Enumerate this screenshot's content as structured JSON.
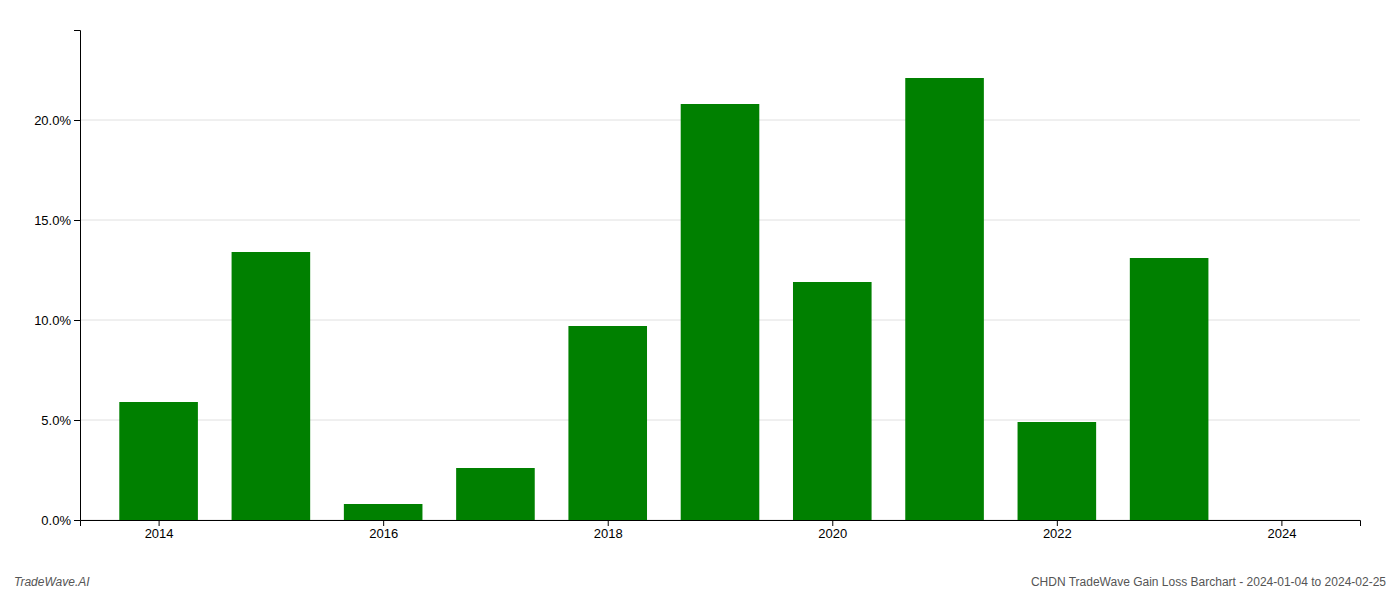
{
  "chart_data": {
    "type": "bar",
    "title": "CHDN TradeWave Gain Loss Barchart - 2024-01-04 to 2024-02-25",
    "annotations": [
      "TradeWave.AI"
    ],
    "x": [
      2014,
      2015,
      2016,
      2017,
      2018,
      2019,
      2020,
      2021,
      2022,
      2023,
      2024
    ],
    "values": [
      0.059,
      0.134,
      0.008,
      0.026,
      0.097,
      0.208,
      0.119,
      0.221,
      0.049,
      0.131,
      0.0
    ],
    "color": "#008000",
    "xlim": [
      2013.3,
      2024.7
    ],
    "xticks": [
      2014,
      2016,
      2018,
      2020,
      2022,
      2024
    ],
    "ylim": [
      0,
      0.245
    ],
    "yticks": [
      {
        "value": 0.0,
        "label": "0.0%"
      },
      {
        "value": 0.05,
        "label": "5.0%"
      },
      {
        "value": 0.1,
        "label": "10.0%"
      },
      {
        "value": 0.15,
        "label": "15.0%"
      },
      {
        "value": 0.2,
        "label": "20.0%"
      }
    ],
    "grid": true
  }
}
